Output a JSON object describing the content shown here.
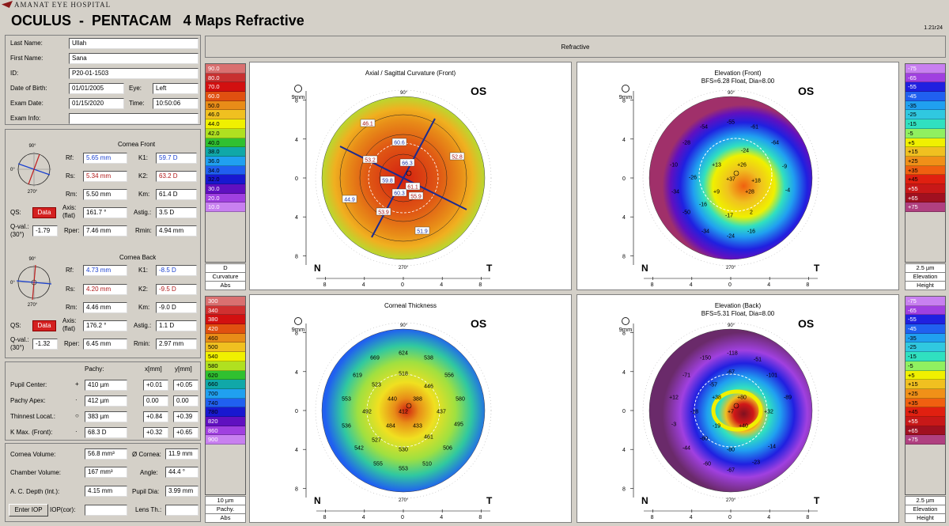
{
  "header": {
    "logo_text": "AMANAT EYE HOSPITAL",
    "title": "OCULUS  -  PENTACAM   4 Maps Refractive",
    "version": "1.21r24"
  },
  "topbar": {
    "label": "Refractive"
  },
  "patient": {
    "last_name_label": "Last Name:",
    "last_name": "Ullah",
    "first_name_label": "First Name:",
    "first_name": "Sana",
    "id_label": "ID:",
    "id": "P20-01-1503",
    "dob_label": "Date of Birth:",
    "dob": "01/01/2005",
    "eye_label": "Eye:",
    "eye": "Left",
    "exam_date_label": "Exam Date:",
    "exam_date": "01/15/2020",
    "time_label": "Time:",
    "time": "10:50:06",
    "exam_info_label": "Exam Info:",
    "exam_info": ""
  },
  "cornea_front": {
    "title": "Cornea Front",
    "rf_label": "Rf:",
    "rf": "5.65 mm",
    "k1_label": "K1:",
    "k1": "59.7 D",
    "rs_label": "Rs:",
    "rs": "5.34 mm",
    "k2_label": "K2:",
    "k2": "63.2 D",
    "rm_label": "Rm:",
    "rm": "5.50 mm",
    "km_label": "Km:",
    "km": "61.4 D",
    "qs_label": "QS:",
    "qs": "Data",
    "axis_label": "Axis:",
    "axis_sub": "(flat)",
    "axis": "161.7 °",
    "astig_label": "Astig.:",
    "astig": "3.5 D",
    "qval_label": "Q-val.:",
    "qval_sub": "(30°)",
    "qval": "-1.79",
    "rper_label": "Rper:",
    "rper": "7.46 mm",
    "rmin_label": "Rmin:",
    "rmin": "4.94 mm",
    "diag_top": "90°",
    "diag_bottom": "270°",
    "diag_left": "0°"
  },
  "cornea_back": {
    "title": "Cornea Back",
    "rf_label": "Rf:",
    "rf": "4.73 mm",
    "k1_label": "K1:",
    "k1": "-8.5 D",
    "rs_label": "Rs:",
    "rs": "4.20 mm",
    "k2_label": "K2:",
    "k2": "-9.5 D",
    "rm_label": "Rm:",
    "rm": "4.46 mm",
    "km_label": "Km:",
    "km": "-9.0 D",
    "qs_label": "QS:",
    "qs": "Data",
    "axis_label": "Axis:",
    "axis_sub": "(flat)",
    "axis": "176.2 °",
    "astig_label": "Astig.:",
    "astig": "1.1 D",
    "qval_label": "Q-val.:",
    "qval_sub": "(30°)",
    "qval": "-1.32",
    "rper_label": "Rper:",
    "rper": "6.45 mm",
    "rmin_label": "Rmin:",
    "rmin": "2.97 mm",
    "diag_top": "90°",
    "diag_bottom": "270°",
    "diag_left": "0°"
  },
  "pachy": {
    "col_pachy": "Pachy:",
    "col_x": "x[mm]",
    "col_y": "y[mm]",
    "rows": [
      {
        "label": "Pupil Center:",
        "sym": "+",
        "pachy": "410 µm",
        "x": "+0.01",
        "y": "+0.05"
      },
      {
        "label": "Pachy Apex:",
        "sym": "·",
        "pachy": "412 µm",
        "x": "0.00",
        "y": "0.00"
      },
      {
        "label": "Thinnest Locat.:",
        "sym": "○",
        "pachy": "383 µm",
        "x": "+0.84",
        "y": "+0.39"
      },
      {
        "label": "K Max. (Front):",
        "sym": "·",
        "pachy": "68.3 D",
        "x": "+0.32",
        "y": "+0.65"
      }
    ]
  },
  "chamber": {
    "cornea_volume_label": "Cornea Volume:",
    "cornea_volume": "56.8 mm³",
    "o_cornea_label": "Ø Cornea:",
    "o_cornea": "11.9 mm",
    "chamber_volume_label": "Chamber Volume:",
    "chamber_volume": "167 mm³",
    "angle_label": "Angle:",
    "angle": "44.4 °",
    "acd_label": "A. C. Depth (Int.):",
    "acd": "4.15 mm",
    "pupil_dia_label": "Pupil Dia:",
    "pupil_dia": "3.99 mm",
    "enter_iop": "Enter IOP",
    "iop_cor_label": "IOP(cor):",
    "iop_cor": "",
    "lens_th_label": "Lens Th.:",
    "lens_th": ""
  },
  "scale_curv": {
    "values": [
      "90.0",
      "80.0",
      "70.0",
      "60.0",
      "50.0",
      "46.0",
      "44.0",
      "42.0",
      "40.0",
      "38.0",
      "36.0",
      "34.0",
      "32.0",
      "30.0",
      "20.0",
      "10.0"
    ],
    "foot1": "D",
    "foot2": "Curvature",
    "foot3": "Abs",
    "colors": [
      "#d97070",
      "#c83030",
      "#d21010",
      "#e05010",
      "#e88c18",
      "#f0c020",
      "#f0f000",
      "#b0e020",
      "#30c030",
      "#10a8a8",
      "#20a0f0",
      "#2060f0",
      "#1818d0",
      "#6010c0",
      "#a040e0",
      "#c880f0"
    ]
  },
  "scale_pachy": {
    "values": [
      "300",
      "340",
      "380",
      "420",
      "460",
      "500",
      "540",
      "580",
      "620",
      "660",
      "700",
      "740",
      "780",
      "820",
      "860",
      "900"
    ],
    "foot1": "10 µm",
    "foot2": "Pachy.",
    "foot3": "Abs",
    "colors": [
      "#d97070",
      "#d03030",
      "#d21010",
      "#e05010",
      "#e88c18",
      "#f0c020",
      "#f0f000",
      "#b0e020",
      "#30c030",
      "#10a8a8",
      "#20a0f0",
      "#2060f0",
      "#1818d0",
      "#6010c0",
      "#a040e0",
      "#c880f0"
    ]
  },
  "scale_elev": {
    "values": [
      "-75",
      "-65",
      "-55",
      "-45",
      "-35",
      "-25",
      "-15",
      "-5",
      "+5",
      "+15",
      "+25",
      "+35",
      "+45",
      "+55",
      "+65",
      "+75"
    ],
    "foot1": "2.5 µm",
    "foot2": "Elevation",
    "foot3": "Height",
    "colors": [
      "#c880f0",
      "#a040e0",
      "#2020e0",
      "#2060f0",
      "#20a0f0",
      "#30c8e0",
      "#30e0c0",
      "#90f060",
      "#f0f000",
      "#f0c020",
      "#f09018",
      "#f06010",
      "#e02010",
      "#c81818",
      "#a01020",
      "#b04080"
    ]
  },
  "maps": {
    "axial": {
      "title": "Axial / Sagittal Curvature (Front)",
      "os": "OS",
      "nasal": "N",
      "temporal": "T",
      "mm": "9mm",
      "deg90": "90°",
      "deg270": "270°",
      "labels": [
        "46.1",
        "60.6",
        "53.2",
        "66.3",
        "52.8",
        "59.8",
        "61.1",
        "60.3",
        "55.9",
        "44.9",
        "53.9",
        "51.9"
      ]
    },
    "elev_front": {
      "title": "Elevation (Front)",
      "subtitle": "BFS=6.28 Float, Dia=8.00",
      "os": "OS",
      "nasal": "N",
      "temporal": "T",
      "mm": "9mm",
      "deg90": "90°",
      "deg270": "270°",
      "labels": [
        "-54",
        "-55",
        "-61",
        "-28",
        "-64",
        "-24",
        "-10",
        "+13",
        "+26",
        "-9",
        "-26",
        "+37",
        "+18",
        "-4",
        "-34",
        "+9",
        "+28",
        "-16",
        "-17",
        "2",
        "-50",
        "-34",
        "-24",
        "-16"
      ]
    },
    "thickness": {
      "title": "Corneal Thickness",
      "os": "OS",
      "nasal": "N",
      "temporal": "T",
      "mm": "9mm",
      "deg90": "90°",
      "deg270": "270°",
      "labels": [
        "624",
        "669",
        "538",
        "619",
        "518",
        "556",
        "523",
        "446",
        "553",
        "440",
        "388",
        "580",
        "492",
        "412",
        "437",
        "536",
        "484",
        "433",
        "495",
        "527",
        "461",
        "542",
        "530",
        "506",
        "555",
        "510",
        "553"
      ]
    },
    "elev_back": {
      "title": "Elevation (Back)",
      "subtitle": "BFS=5.31 Float, Dia=8.00",
      "os": "OS",
      "nasal": "N",
      "temporal": "T",
      "mm": "9mm",
      "deg90": "90°",
      "deg270": "270°",
      "labels": [
        "-118",
        "-150",
        "-51",
        "-71",
        "-67",
        "-101",
        "-57",
        "+12",
        "+38",
        "+80",
        "-89",
        "-18",
        "+7",
        "+32",
        "-3",
        "-19",
        "+40",
        "-80",
        "-14",
        "-44",
        "-80",
        "-60",
        "-67",
        "-23"
      ]
    }
  }
}
